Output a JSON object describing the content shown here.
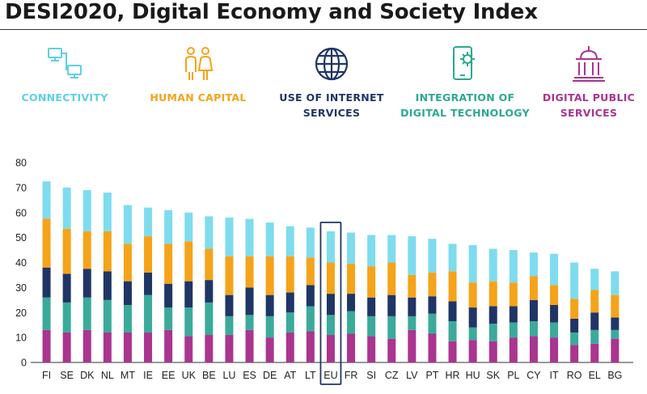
{
  "title": "DESI2020, Digital Economy and Society Index",
  "colors": {
    "connectivity": "#7EDCEE",
    "human_capital": "#F5A31A",
    "internet_services": "#1F3566",
    "digital_technology": "#3BAA9A",
    "public_services": "#A9358F"
  },
  "dimensions": [
    {
      "icon": "network-computers-icon",
      "line1": "CONNECTIVITY",
      "line2": "",
      "color": "#5FCFE6"
    },
    {
      "icon": "people-icon",
      "line1": "HUMAN CAPITAL",
      "line2": "",
      "color": "#F5A31A"
    },
    {
      "icon": "globe-icon",
      "line1": "USE OF INTERNET",
      "line2": "SERVICES",
      "color": "#1F3566"
    },
    {
      "icon": "phone-gear-icon",
      "line1": "INTEGRATION OF",
      "line2": "DIGITAL TECHNOLOGY",
      "color": "#2BA88F"
    },
    {
      "icon": "government-building-icon",
      "line1": "DIGITAL PUBLIC",
      "line2": "SERVICES",
      "color": "#A9358F"
    }
  ],
  "chart_data": {
    "type": "bar",
    "stacked": true,
    "categories": [
      "FI",
      "SE",
      "DK",
      "NL",
      "MT",
      "IE",
      "EE",
      "UK",
      "BE",
      "LU",
      "ES",
      "DE",
      "AT",
      "LT",
      "EU",
      "FR",
      "SI",
      "CZ",
      "LV",
      "PT",
      "HR",
      "HU",
      "SK",
      "PL",
      "CY",
      "IT",
      "RO",
      "EL",
      "BG"
    ],
    "highlight": "EU",
    "ylim": [
      0,
      80
    ],
    "yticks": [
      0,
      10,
      20,
      30,
      40,
      50,
      60,
      70,
      80
    ],
    "grid": false,
    "series": [
      {
        "key": "public_services",
        "values": [
          13,
          12,
          13,
          12,
          12,
          12,
          13,
          10.5,
          11,
          11,
          13,
          10,
          12,
          12.5,
          11,
          11.5,
          10.5,
          9.5,
          13,
          11.5,
          8.5,
          9,
          8.5,
          10,
          10.5,
          10,
          7,
          7.5,
          9.5
        ]
      },
      {
        "key": "digital_technology",
        "values": [
          13,
          12,
          13,
          13,
          11,
          15,
          9,
          11.5,
          13,
          7.5,
          6,
          8.5,
          8,
          10,
          8,
          9,
          8,
          9,
          5.5,
          8,
          8,
          5,
          7,
          6,
          6,
          6,
          5,
          5.5,
          3.5
        ]
      },
      {
        "key": "internet_services",
        "values": [
          12,
          11.5,
          11.5,
          11.5,
          9.5,
          9,
          9.5,
          10.5,
          9,
          8.5,
          11,
          8.5,
          8,
          8.5,
          8.5,
          7,
          7.5,
          8.5,
          7.5,
          7,
          8,
          8,
          7,
          6.5,
          8.5,
          7,
          5.5,
          7,
          5
        ]
      },
      {
        "key": "human_capital",
        "values": [
          19.5,
          18,
          15,
          16,
          15,
          14.5,
          16,
          16,
          12.5,
          15.5,
          12.5,
          15.5,
          14.5,
          11,
          12.5,
          12,
          12.5,
          13,
          9,
          9.5,
          12,
          10,
          10,
          9.5,
          9.5,
          8,
          8,
          9,
          9
        ]
      },
      {
        "key": "connectivity",
        "values": [
          15,
          16.5,
          16.5,
          15.5,
          15.5,
          11.5,
          13.5,
          11.5,
          13,
          15.5,
          15,
          13.5,
          12,
          12,
          12.5,
          12.5,
          12.5,
          11,
          15.5,
          13.5,
          11,
          15,
          13,
          13,
          9.5,
          12.5,
          14.5,
          8.5,
          9.5
        ]
      }
    ]
  }
}
